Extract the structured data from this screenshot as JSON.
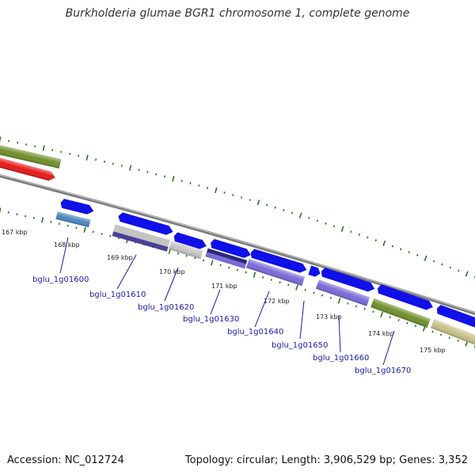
{
  "title": "Burkholderia glumae BGR1 chromosome 1, complete genome",
  "footer": {
    "accession": "Accession: NC_012724",
    "summary": "Topology: circular; Length: 3,906,529 bp; Genes: 3,352"
  },
  "colors": {
    "backbone": "#8a8a8a",
    "tick": "#1f7a1f",
    "gene_blue": "#1010e8",
    "gene_red": "#e81818",
    "gene_olive": "#6f8f2a",
    "gene_khaki": "#c8c088",
    "gene_steel": "#4a86c0",
    "gene_lavender": "#7a6ad8",
    "gene_silver": "#c4c4c4",
    "gene_navy": "#2a2a7a",
    "label": "#1a1aa8"
  },
  "scale_labels": [
    "167 kbp",
    "168 kbp",
    "169 kbp",
    "170 kbp",
    "171 kbp",
    "172 kbp",
    "173 kbp",
    "174 kbp",
    "175 kbp"
  ],
  "gene_labels": [
    "bglu_1g01600",
    "bglu_1g01610",
    "bglu_1g01620",
    "bglu_1g01630",
    "bglu_1g01640",
    "bglu_1g01650",
    "bglu_1g01660",
    "bglu_1g01670"
  ]
}
